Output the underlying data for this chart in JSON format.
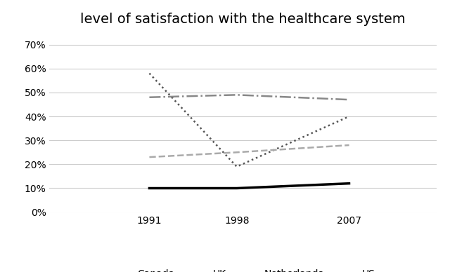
{
  "title": "level of satisfaction with the healthcare system",
  "years": [
    1991,
    1998,
    2007
  ],
  "series": {
    "Canada": {
      "values": [
        58,
        19,
        40
      ],
      "color": "#555555",
      "linestyle": "dotted",
      "linewidth": 1.8
    },
    "UK": {
      "values": [
        23,
        25,
        28
      ],
      "color": "#aaaaaa",
      "linestyle": "dashed",
      "linewidth": 1.8
    },
    "Netherlands": {
      "values": [
        48,
        49,
        47
      ],
      "color": "#888888",
      "linestyle": "dashdot",
      "linewidth": 1.8
    },
    "US": {
      "values": [
        10,
        10,
        12
      ],
      "color": "#000000",
      "linestyle": "solid",
      "linewidth": 2.5
    }
  },
  "ylim": [
    0,
    75
  ],
  "yticks": [
    0,
    10,
    20,
    30,
    40,
    50,
    60,
    70
  ],
  "ytick_labels": [
    "0%",
    "10%",
    "20%",
    "30%",
    "40%",
    "50%",
    "60%",
    "70%"
  ],
  "xlim": [
    1983,
    2014
  ],
  "background_color": "#ffffff",
  "grid_color": "#cccccc",
  "title_fontsize": 14,
  "tick_fontsize": 10
}
